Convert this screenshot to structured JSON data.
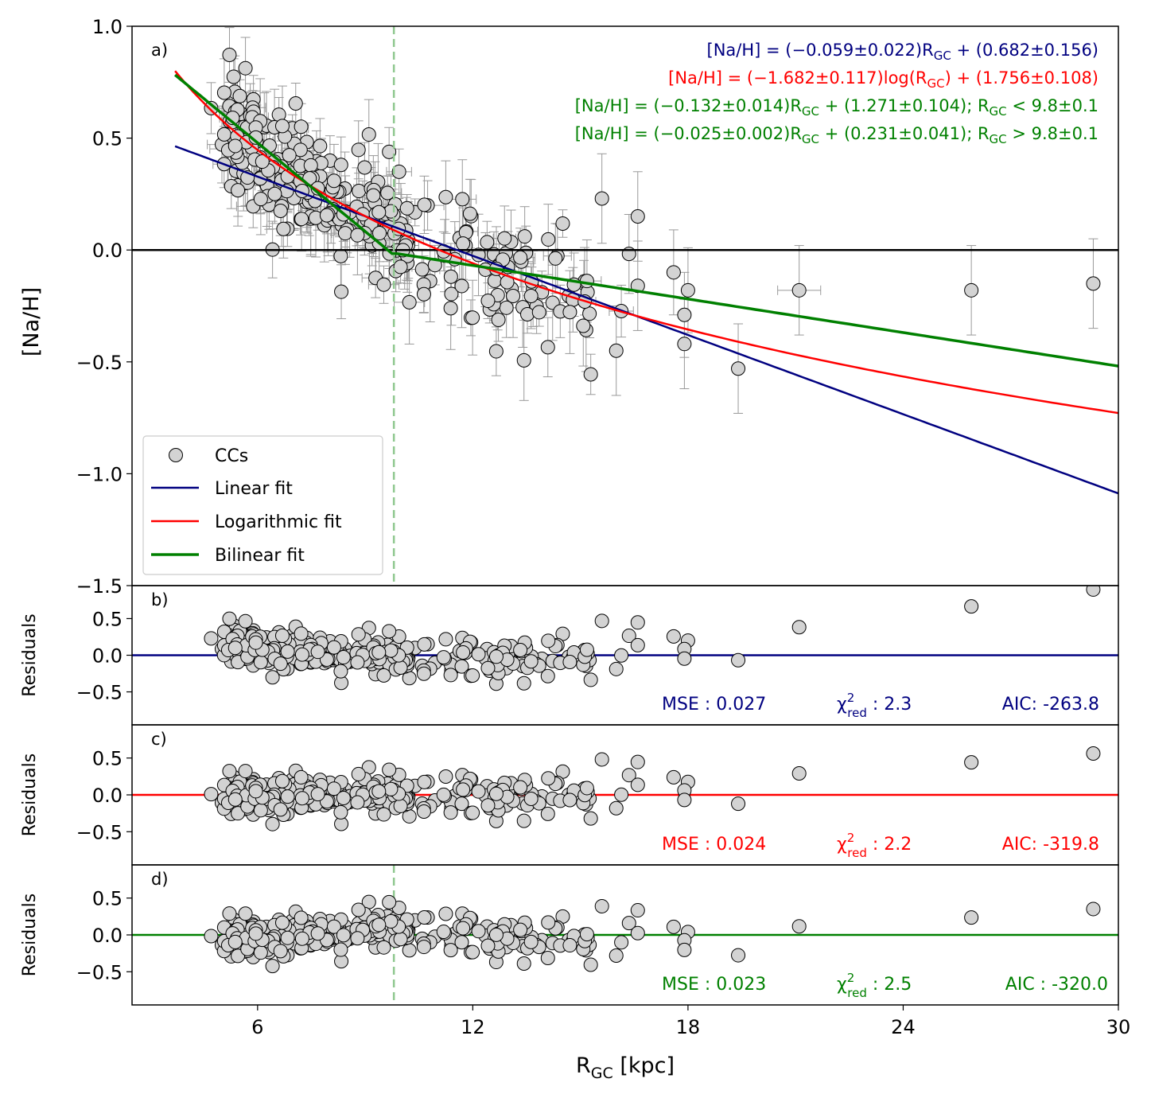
{
  "chart_data": {
    "type": "scatter",
    "xlabel_main": "R",
    "xlabel_sub": "GC",
    "xlabel_unit": " [kpc]",
    "xlim": [
      2.5,
      30
    ],
    "xticks": [
      "6",
      "12",
      "18",
      "24",
      "30"
    ],
    "xtick_values": [
      6,
      12,
      18,
      24,
      30
    ],
    "colors": {
      "linear": "#000080",
      "log": "#ff0000",
      "bilinear": "#008000",
      "points": "#d3d3d3",
      "errorbar": "#999999",
      "break_line": "#90c890"
    },
    "break_radius": 9.8,
    "panels": [
      {
        "id": "a",
        "tag": "a)",
        "ylabel": "[Na/H]",
        "ylim": [
          -1.5,
          1.0
        ],
        "yticks": [
          "1.0",
          "0.5",
          "0.0",
          "−0.5",
          "−1.0",
          "−1.5"
        ],
        "ytick_values": [
          1.0,
          0.5,
          0.0,
          -0.5,
          -1.0,
          -1.5
        ]
      },
      {
        "id": "b",
        "tag": "b)",
        "ylabel": "Residuals",
        "ylim": [
          -0.95,
          0.95
        ],
        "yticks": [
          "0.5",
          "0.0",
          "−0.5"
        ],
        "ytick_values": [
          0.5,
          0.0,
          -0.5
        ],
        "fit": "linear",
        "mse_label": "MSE : 0.027",
        "chi_label": "χ",
        "chi_sup": "2",
        "chi_sub": "red",
        "chi_value": " : 2.3",
        "aic_label": "AIC: -263.8"
      },
      {
        "id": "c",
        "tag": "c)",
        "ylabel": "Residuals",
        "ylim": [
          -0.95,
          0.95
        ],
        "yticks": [
          "0.5",
          "0.0",
          "−0.5"
        ],
        "ytick_values": [
          0.5,
          0.0,
          -0.5
        ],
        "fit": "log",
        "mse_label": "MSE : 0.024",
        "chi_label": "χ",
        "chi_sup": "2",
        "chi_sub": "red",
        "chi_value": " : 2.2",
        "aic_label": "AIC: -319.8"
      },
      {
        "id": "d",
        "tag": "d)",
        "ylabel": "Residuals",
        "ylim": [
          -0.95,
          0.95
        ],
        "yticks": [
          "0.5",
          "0.0",
          "−0.5"
        ],
        "ytick_values": [
          0.5,
          0.0,
          -0.5
        ],
        "fit": "bilinear",
        "mse_label": "MSE : 0.023",
        "chi_label": "χ",
        "chi_sup": "2",
        "chi_sub": "red",
        "chi_value": " : 2.5",
        "aic_label": "AIC : -320.0"
      }
    ],
    "equations": [
      {
        "text": "[Na/H] = (−0.059±0.022)R",
        "sub": "GC",
        "tail": " + (0.682±0.156)",
        "color": "#000080"
      },
      {
        "text": "[Na/H] = (−1.682±0.117)log(R",
        "sub": "GC",
        "tail": ") + (1.756±0.108)",
        "color": "#ff0000"
      },
      {
        "text": "[Na/H] = (−0.132±0.014)R",
        "sub": "GC",
        "tail": " + (1.271±0.104);    R",
        "sub2": "GC",
        "tail2": " < 9.8±0.1",
        "color": "#008000"
      },
      {
        "text": "[Na/H] = (−0.025±0.002)R",
        "sub": "GC",
        "tail": " + (0.231±0.041);    R",
        "sub2": "GC",
        "tail2": " > 9.8±0.1",
        "color": "#008000"
      }
    ],
    "legend": {
      "position": "lower-left",
      "entries": [
        {
          "label": "CCs",
          "kind": "marker"
        },
        {
          "label": "Linear fit",
          "kind": "line",
          "color": "#000080"
        },
        {
          "label": "Logarithmic fit",
          "kind": "line",
          "color": "#ff0000"
        },
        {
          "label": "Bilinear fit",
          "kind": "line",
          "color": "#008000"
        }
      ]
    },
    "fits": {
      "linear": {
        "slope": -0.059,
        "intercept": 0.682
      },
      "log": {
        "slope": -1.682,
        "intercept": 1.756
      },
      "bilinear": {
        "inner_slope": -0.132,
        "inner_intercept": 1.271,
        "outer_slope": -0.025,
        "outer_intercept": 0.231
      },
      "x_range": [
        3.7,
        30
      ]
    },
    "outer_points": [
      {
        "x": 17.6,
        "y": -0.1,
        "yerr": 0.19
      },
      {
        "x": 18.0,
        "y": -0.18,
        "yerr": 0.19
      },
      {
        "x": 17.9,
        "y": -0.29,
        "yerr": 0.19
      },
      {
        "x": 17.9,
        "y": -0.42,
        "yerr": 0.2
      },
      {
        "x": 19.4,
        "y": -0.53,
        "yerr": 0.2
      },
      {
        "x": 21.1,
        "y": -0.18,
        "yerr": 0.2,
        "xerr": 0.6
      },
      {
        "x": 25.9,
        "y": -0.18,
        "yerr": 0.2
      },
      {
        "x": 29.3,
        "y": -0.15,
        "yerr": 0.2
      },
      {
        "x": 16.6,
        "y": -0.16,
        "yerr": 0.2
      },
      {
        "x": 16.6,
        "y": 0.15,
        "yerr": 0.2
      },
      {
        "x": 16.0,
        "y": -0.45,
        "yerr": 0.2
      },
      {
        "x": 15.6,
        "y": 0.23,
        "yerr": 0.2
      }
    ],
    "inner_seed": 20240517,
    "inner_count": 300
  }
}
